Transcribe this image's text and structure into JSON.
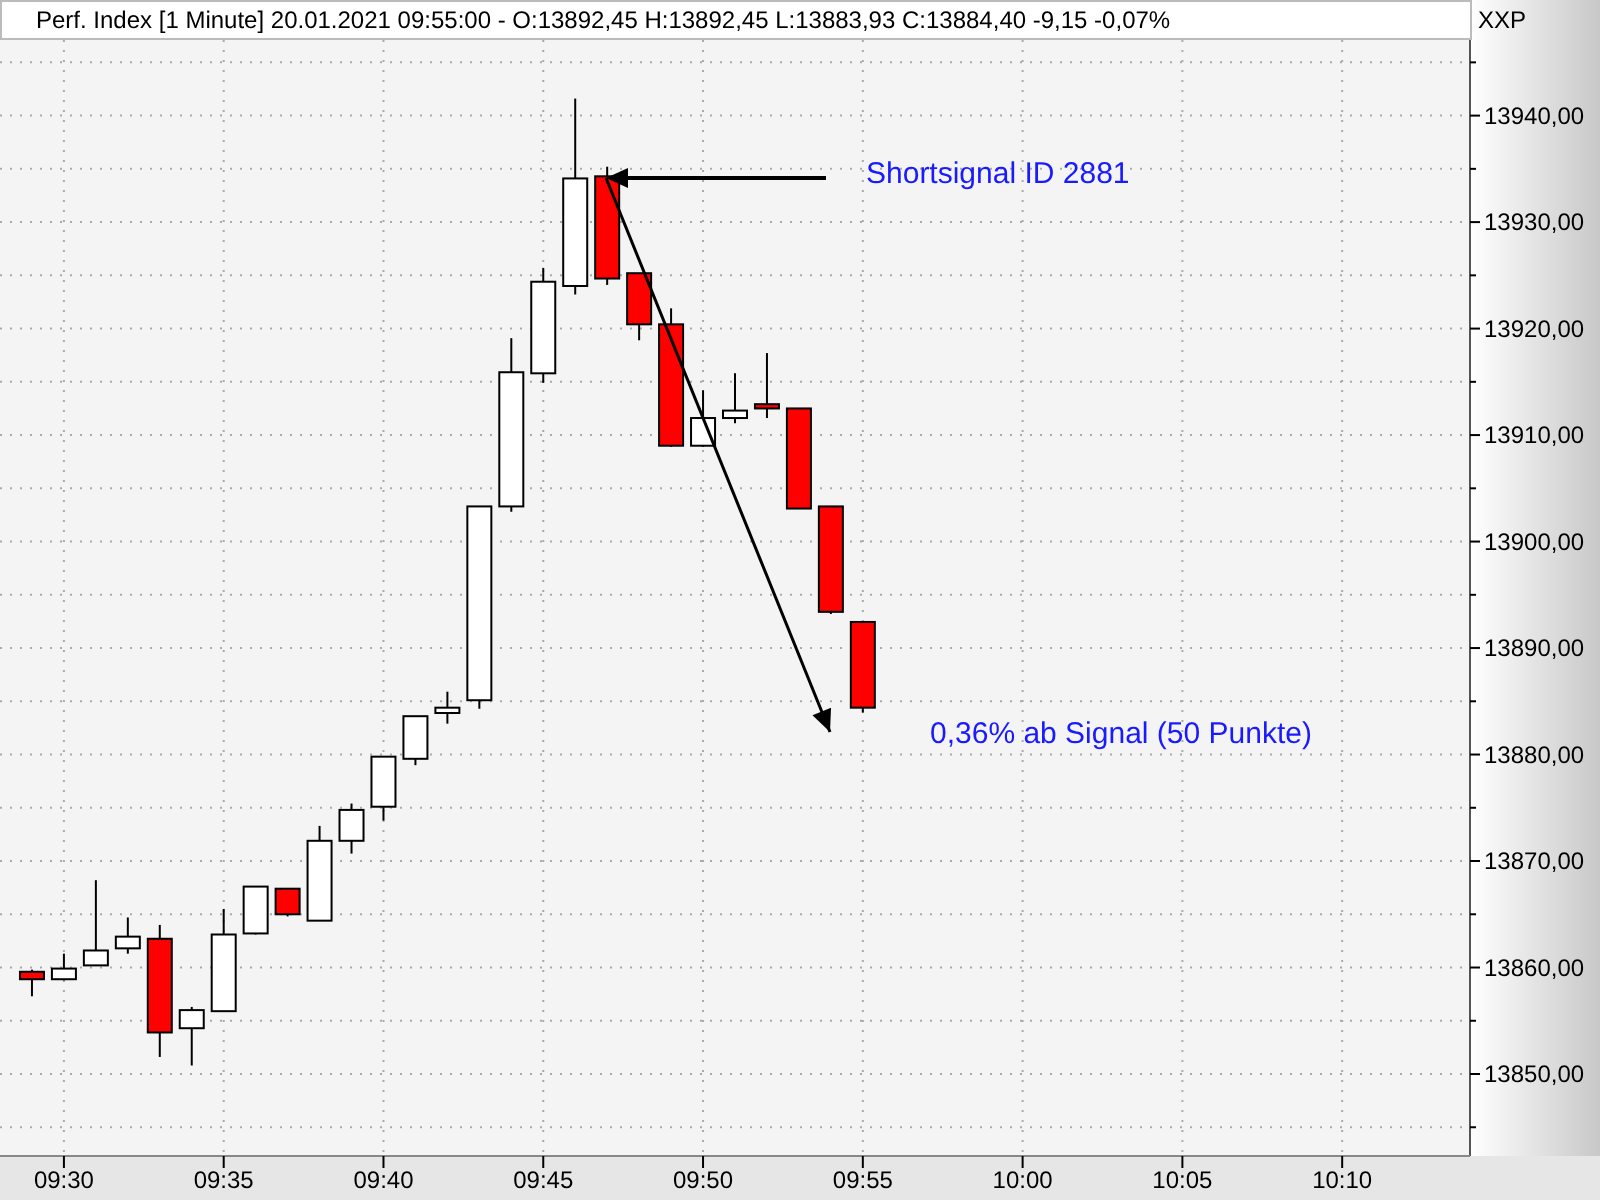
{
  "chart_data": {
    "type": "candlestick",
    "title": "Perf. Index [1 Minute] 20.01.2021 09:55:00 - O:13892,45 H:13892,45 L:13883,93 C:13884,40 -9,15 -0,07%",
    "x": [
      "2021-01-20T09:29",
      "2021-01-20T09:30",
      "2021-01-20T09:31",
      "2021-01-20T09:32",
      "2021-01-20T09:33",
      "2021-01-20T09:34",
      "2021-01-20T09:35",
      "2021-01-20T09:36",
      "2021-01-20T09:37",
      "2021-01-20T09:38",
      "2021-01-20T09:39",
      "2021-01-20T09:40",
      "2021-01-20T09:41",
      "2021-01-20T09:42",
      "2021-01-20T09:43",
      "2021-01-20T09:44",
      "2021-01-20T09:45",
      "2021-01-20T09:46",
      "2021-01-20T09:47",
      "2021-01-20T09:48",
      "2021-01-20T09:49",
      "2021-01-20T09:50",
      "2021-01-20T09:51",
      "2021-01-20T09:52",
      "2021-01-20T09:53",
      "2021-01-20T09:54",
      "2021-01-20T09:55"
    ],
    "ohlc": [
      [
        13859.6,
        13859.8,
        13857.3,
        13858.9
      ],
      [
        13858.9,
        13861.3,
        13858.8,
        13859.9
      ],
      [
        13860.2,
        13868.2,
        13860.2,
        13861.6
      ],
      [
        13861.8,
        13864.7,
        13861.3,
        13862.9
      ],
      [
        13862.7,
        13864.0,
        13851.6,
        13853.9
      ],
      [
        13854.3,
        13856.3,
        13850.8,
        13856.0
      ],
      [
        13855.9,
        13865.5,
        13855.9,
        13863.1
      ],
      [
        13863.2,
        13867.6,
        13863.1,
        13867.6
      ],
      [
        13867.4,
        13867.4,
        13864.8,
        13865.0
      ],
      [
        13864.4,
        13873.3,
        13864.4,
        13871.9
      ],
      [
        13871.9,
        13875.4,
        13870.7,
        13874.8
      ],
      [
        13875.1,
        13879.8,
        13873.8,
        13879.8
      ],
      [
        13879.6,
        13883.6,
        13879.0,
        13883.6
      ],
      [
        13883.9,
        13885.9,
        13882.9,
        13884.4
      ],
      [
        13885.1,
        13903.3,
        13884.3,
        13903.3
      ],
      [
        13903.3,
        13919.1,
        13902.8,
        13915.9
      ],
      [
        13915.8,
        13925.7,
        13914.9,
        13924.4
      ],
      [
        13924.0,
        13941.6,
        13923.2,
        13934.1
      ],
      [
        13934.3,
        13935.2,
        13924.1,
        13924.7
      ],
      [
        13925.2,
        13925.2,
        13918.9,
        13920.4
      ],
      [
        13920.4,
        13921.9,
        13908.9,
        13909.0
      ],
      [
        13909.0,
        13914.2,
        13908.9,
        13911.6
      ],
      [
        13911.6,
        13915.8,
        13911.1,
        13912.3
      ],
      [
        13912.9,
        13917.7,
        13911.6,
        13912.5
      ],
      [
        13912.5,
        13912.5,
        13903.1,
        13903.1
      ],
      [
        13903.3,
        13903.3,
        13893.2,
        13893.4
      ],
      [
        13892.45,
        13892.45,
        13883.93,
        13884.4
      ]
    ],
    "colors": [
      "#ff0000",
      "#ffffff",
      "#ffffff",
      "#ffffff",
      "#ff0000",
      "#ffffff",
      "#ffffff",
      "#ffffff",
      "#ff0000",
      "#ffffff",
      "#ffffff",
      "#ffffff",
      "#ffffff",
      "#ffffff",
      "#ffffff",
      "#ffffff",
      "#ffffff",
      "#ffffff",
      "#ff0000",
      "#ff0000",
      "#ff0000",
      "#ffffff",
      "#ffffff",
      "#ff0000",
      "#ff0000",
      "#ff0000",
      "#ff0000"
    ],
    "xlim": [
      "2021-01-20T09:28",
      "2021-01-20T10:14"
    ],
    "xticks": [
      {
        "value": "2021-01-20T09:30",
        "label": "09:30"
      },
      {
        "value": "2021-01-20T09:35",
        "label": "09:35"
      },
      {
        "value": "2021-01-20T09:40",
        "label": "09:40"
      },
      {
        "value": "2021-01-20T09:45",
        "label": "09:45"
      },
      {
        "value": "2021-01-20T09:50",
        "label": "09:50"
      },
      {
        "value": "2021-01-20T09:55",
        "label": "09:55"
      },
      {
        "value": "2021-01-20T10:00",
        "label": "10:00"
      },
      {
        "value": "2021-01-20T10:05",
        "label": "10:05"
      },
      {
        "value": "2021-01-20T10:10",
        "label": "10:10"
      }
    ],
    "ylim": [
      13842.3,
      13947.1
    ],
    "yticks": [
      {
        "value": 13845,
        "label": null
      },
      {
        "value": 13850,
        "label": "13850,00"
      },
      {
        "value": 13855,
        "label": null
      },
      {
        "value": 13860,
        "label": "13860,00"
      },
      {
        "value": 13865,
        "label": null
      },
      {
        "value": 13870,
        "label": "13870,00"
      },
      {
        "value": 13875,
        "label": null
      },
      {
        "value": 13880,
        "label": "13880,00"
      },
      {
        "value": 13885,
        "label": null
      },
      {
        "value": 13890,
        "label": "13890,00"
      },
      {
        "value": 13895,
        "label": null
      },
      {
        "value": 13900,
        "label": "13900,00"
      },
      {
        "value": 13905,
        "label": null
      },
      {
        "value": 13910,
        "label": "13910,00"
      },
      {
        "value": 13915,
        "label": null
      },
      {
        "value": 13920,
        "label": "13920,00"
      },
      {
        "value": 13925,
        "label": null
      },
      {
        "value": 13930,
        "label": "13930,00"
      },
      {
        "value": 13935,
        "label": null
      },
      {
        "value": 13940,
        "label": "13940,00"
      },
      {
        "value": 13945,
        "label": null
      }
    ],
    "grid": true,
    "annotations": [
      "XXP",
      "Shortsignal ID 2881",
      "0,36% ab Signal (50 Punkte)"
    ]
  }
}
